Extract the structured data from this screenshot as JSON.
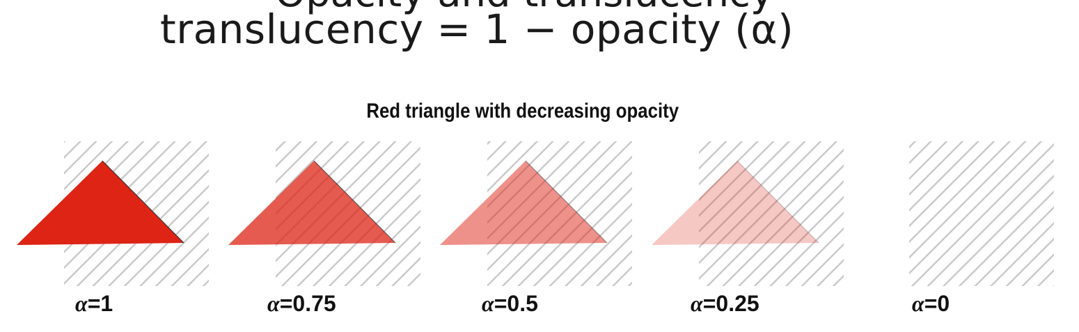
{
  "slide": {
    "cut_heading": "Opacity and translucency",
    "formula": "translucency = 1 − opacity (α)"
  },
  "figure": {
    "title": "Red triangle with decreasing opacity",
    "triangle_color": "#dd2415",
    "stripe_color": "#c8c8c8",
    "panels": [
      {
        "alpha": 1,
        "label_symbol": "α",
        "label_value": "=1"
      },
      {
        "alpha": 0.75,
        "label_symbol": "α",
        "label_value": "=0.75"
      },
      {
        "alpha": 0.5,
        "label_symbol": "α",
        "label_value": "=0.5"
      },
      {
        "alpha": 0.25,
        "label_symbol": "α",
        "label_value": "=0.25"
      },
      {
        "alpha": 0,
        "label_symbol": "α",
        "label_value": "=0"
      }
    ]
  }
}
